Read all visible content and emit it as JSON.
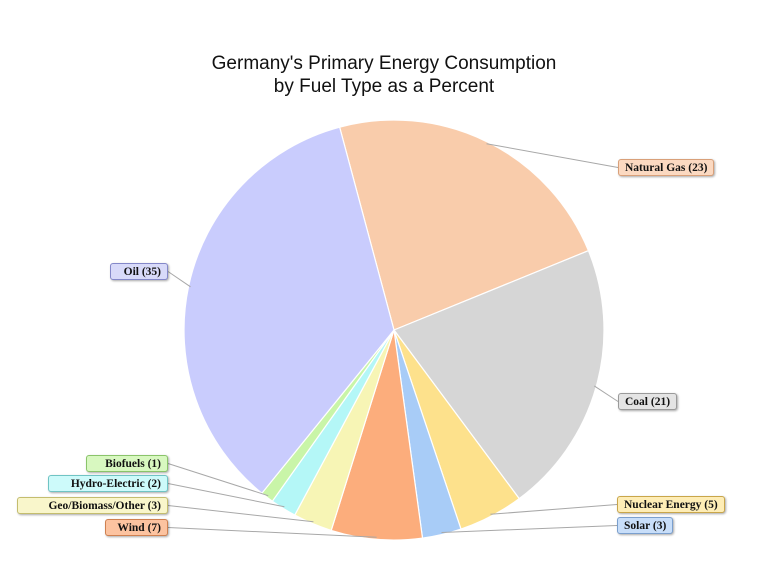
{
  "chart_data": {
    "type": "pie",
    "title_lines": [
      "Germany's Primary Energy Consumption",
      "by Fuel Type as a Percent"
    ],
    "slices": [
      {
        "name": "Natural Gas",
        "value": 23,
        "label": "Natural Gas (23)",
        "color": "#f9ccab",
        "label_bg": "#fbd9c1",
        "label_border": "#d9a079"
      },
      {
        "name": "Coal",
        "value": 21,
        "label": "Coal (21)",
        "color": "#d6d6d6",
        "label_bg": "#e4e4e4",
        "label_border": "#9a9a9a"
      },
      {
        "name": "Nuclear Energy",
        "value": 5,
        "label": "Nuclear Energy (5)",
        "color": "#fde18c",
        "label_bg": "#feedb6",
        "label_border": "#c9a64a"
      },
      {
        "name": "Solar",
        "value": 3,
        "label": "Solar (3)",
        "color": "#a8ccf7",
        "label_bg": "#c8def9",
        "label_border": "#7a9fce"
      },
      {
        "name": "Wind",
        "value": 7,
        "label": "Wind (7)",
        "color": "#fcad7c",
        "label_bg": "#fcc3a0",
        "label_border": "#cf8050"
      },
      {
        "name": "Geo/Biomass/Other",
        "value": 3,
        "label": "Geo/Biomass/Other (3)",
        "color": "#f7f5b5",
        "label_bg": "#f9f6cb",
        "label_border": "#c4bd6e"
      },
      {
        "name": "Hydro-Electric",
        "value": 2,
        "label": "Hydro-Electric (2)",
        "color": "#b4f7f7",
        "label_bg": "#cdfafa",
        "label_border": "#6fc4c4"
      },
      {
        "name": "Biofuels",
        "value": 1,
        "label": "Biofuels (1)",
        "color": "#c9f5a8",
        "label_bg": "#d8f8c0",
        "label_border": "#8ac46a"
      },
      {
        "name": "Oil",
        "value": 35,
        "label": "Oil (35)",
        "color": "#c9ccfd",
        "label_bg": "#d8daf9",
        "label_border": "#8488c9"
      }
    ]
  }
}
